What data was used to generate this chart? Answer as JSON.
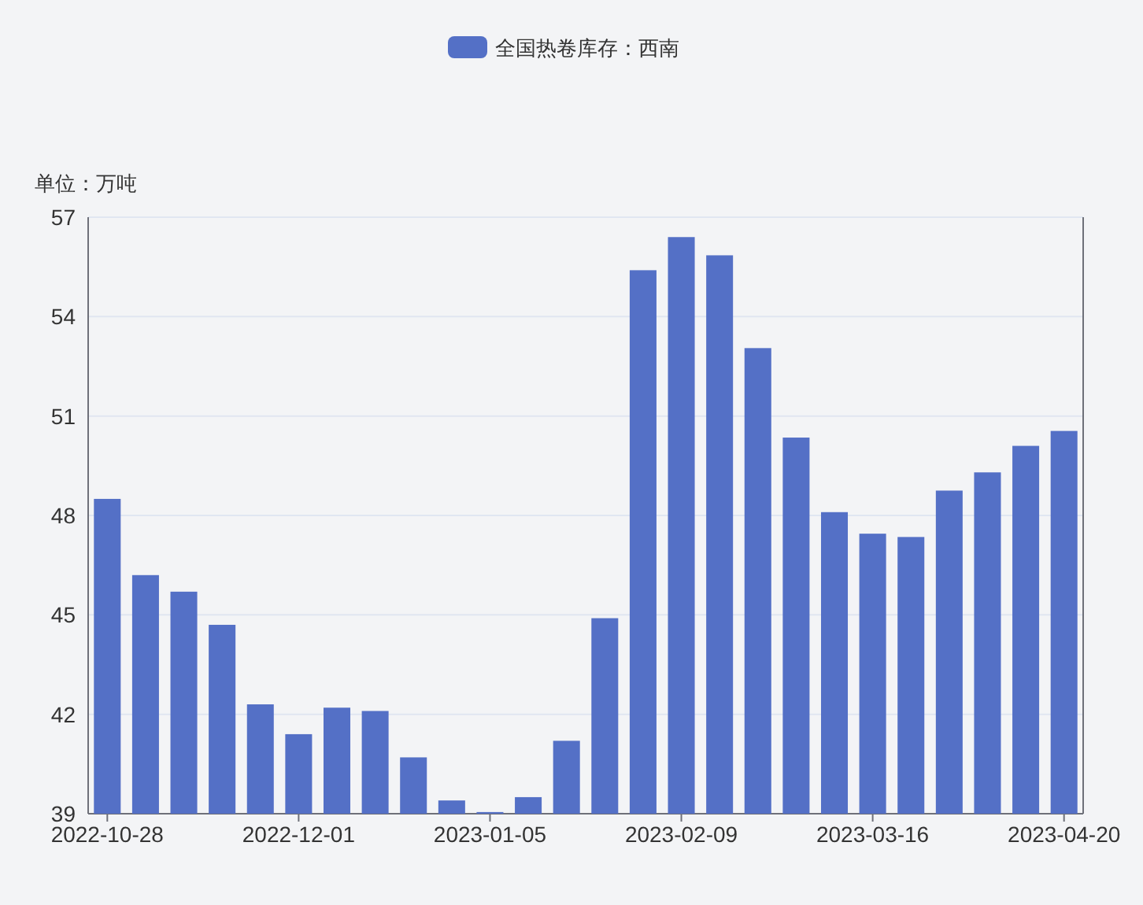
{
  "chart_data": {
    "type": "bar",
    "ylabel": "单位：万吨",
    "categories": [
      "2022-10-28",
      null,
      null,
      null,
      null,
      "2022-12-01",
      null,
      null,
      null,
      null,
      "2023-01-05",
      null,
      null,
      null,
      null,
      "2023-02-09",
      null,
      null,
      null,
      null,
      "2023-03-16",
      null,
      null,
      null,
      null,
      "2023-04-20"
    ],
    "series": [
      {
        "name": "全国热卷库存：西南",
        "color": "#5470c6",
        "values": [
          48.5,
          46.2,
          45.7,
          44.7,
          42.3,
          41.4,
          42.2,
          42.1,
          40.7,
          39.4,
          39.05,
          39.5,
          41.2,
          44.9,
          55.4,
          56.4,
          55.85,
          53.05,
          50.35,
          48.1,
          47.45,
          47.35,
          48.75,
          49.3,
          50.1,
          50.55
        ]
      }
    ],
    "ylim": [
      39,
      57
    ],
    "yticks": [
      39,
      42,
      45,
      48,
      51,
      54,
      57
    ],
    "grid": "y",
    "legend": "top"
  }
}
